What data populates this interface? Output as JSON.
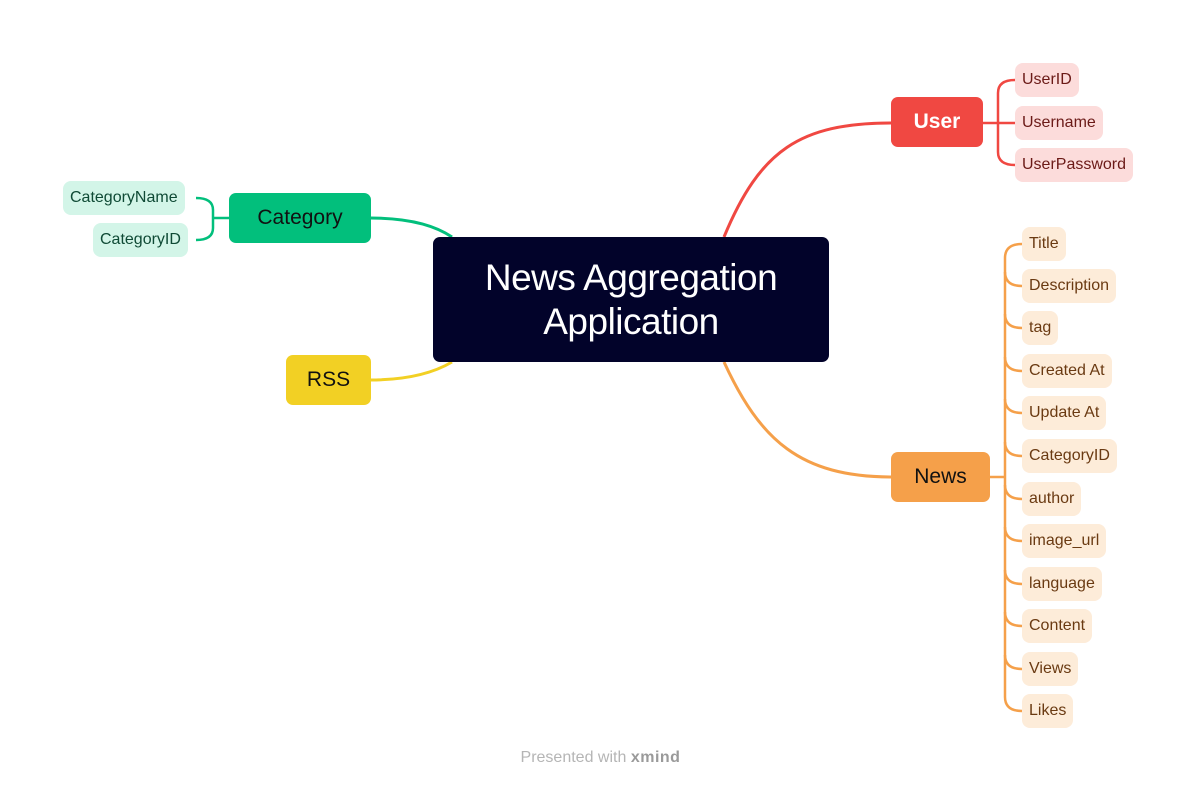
{
  "central": {
    "line1": "News Aggregation",
    "line2": "Application"
  },
  "branches": {
    "user": {
      "label": "User",
      "color": "#f04842",
      "items": [
        "UserID",
        "Username",
        "UserPassword"
      ]
    },
    "category": {
      "label": "Category",
      "color": "#02bf7c",
      "items": [
        "CategoryName",
        "CategoryID"
      ]
    },
    "rss": {
      "label": "RSS",
      "color": "#f2d024",
      "items": []
    },
    "news": {
      "label": "News",
      "color": "#f5a04a",
      "items": [
        "Title",
        "Description",
        "tag",
        "Created At",
        "Update At",
        "CategoryID",
        "author",
        "image_url",
        "language",
        "Content",
        "Views",
        "Likes"
      ]
    }
  },
  "footer": {
    "prefix": "Presented with",
    "brand": "xmind"
  }
}
